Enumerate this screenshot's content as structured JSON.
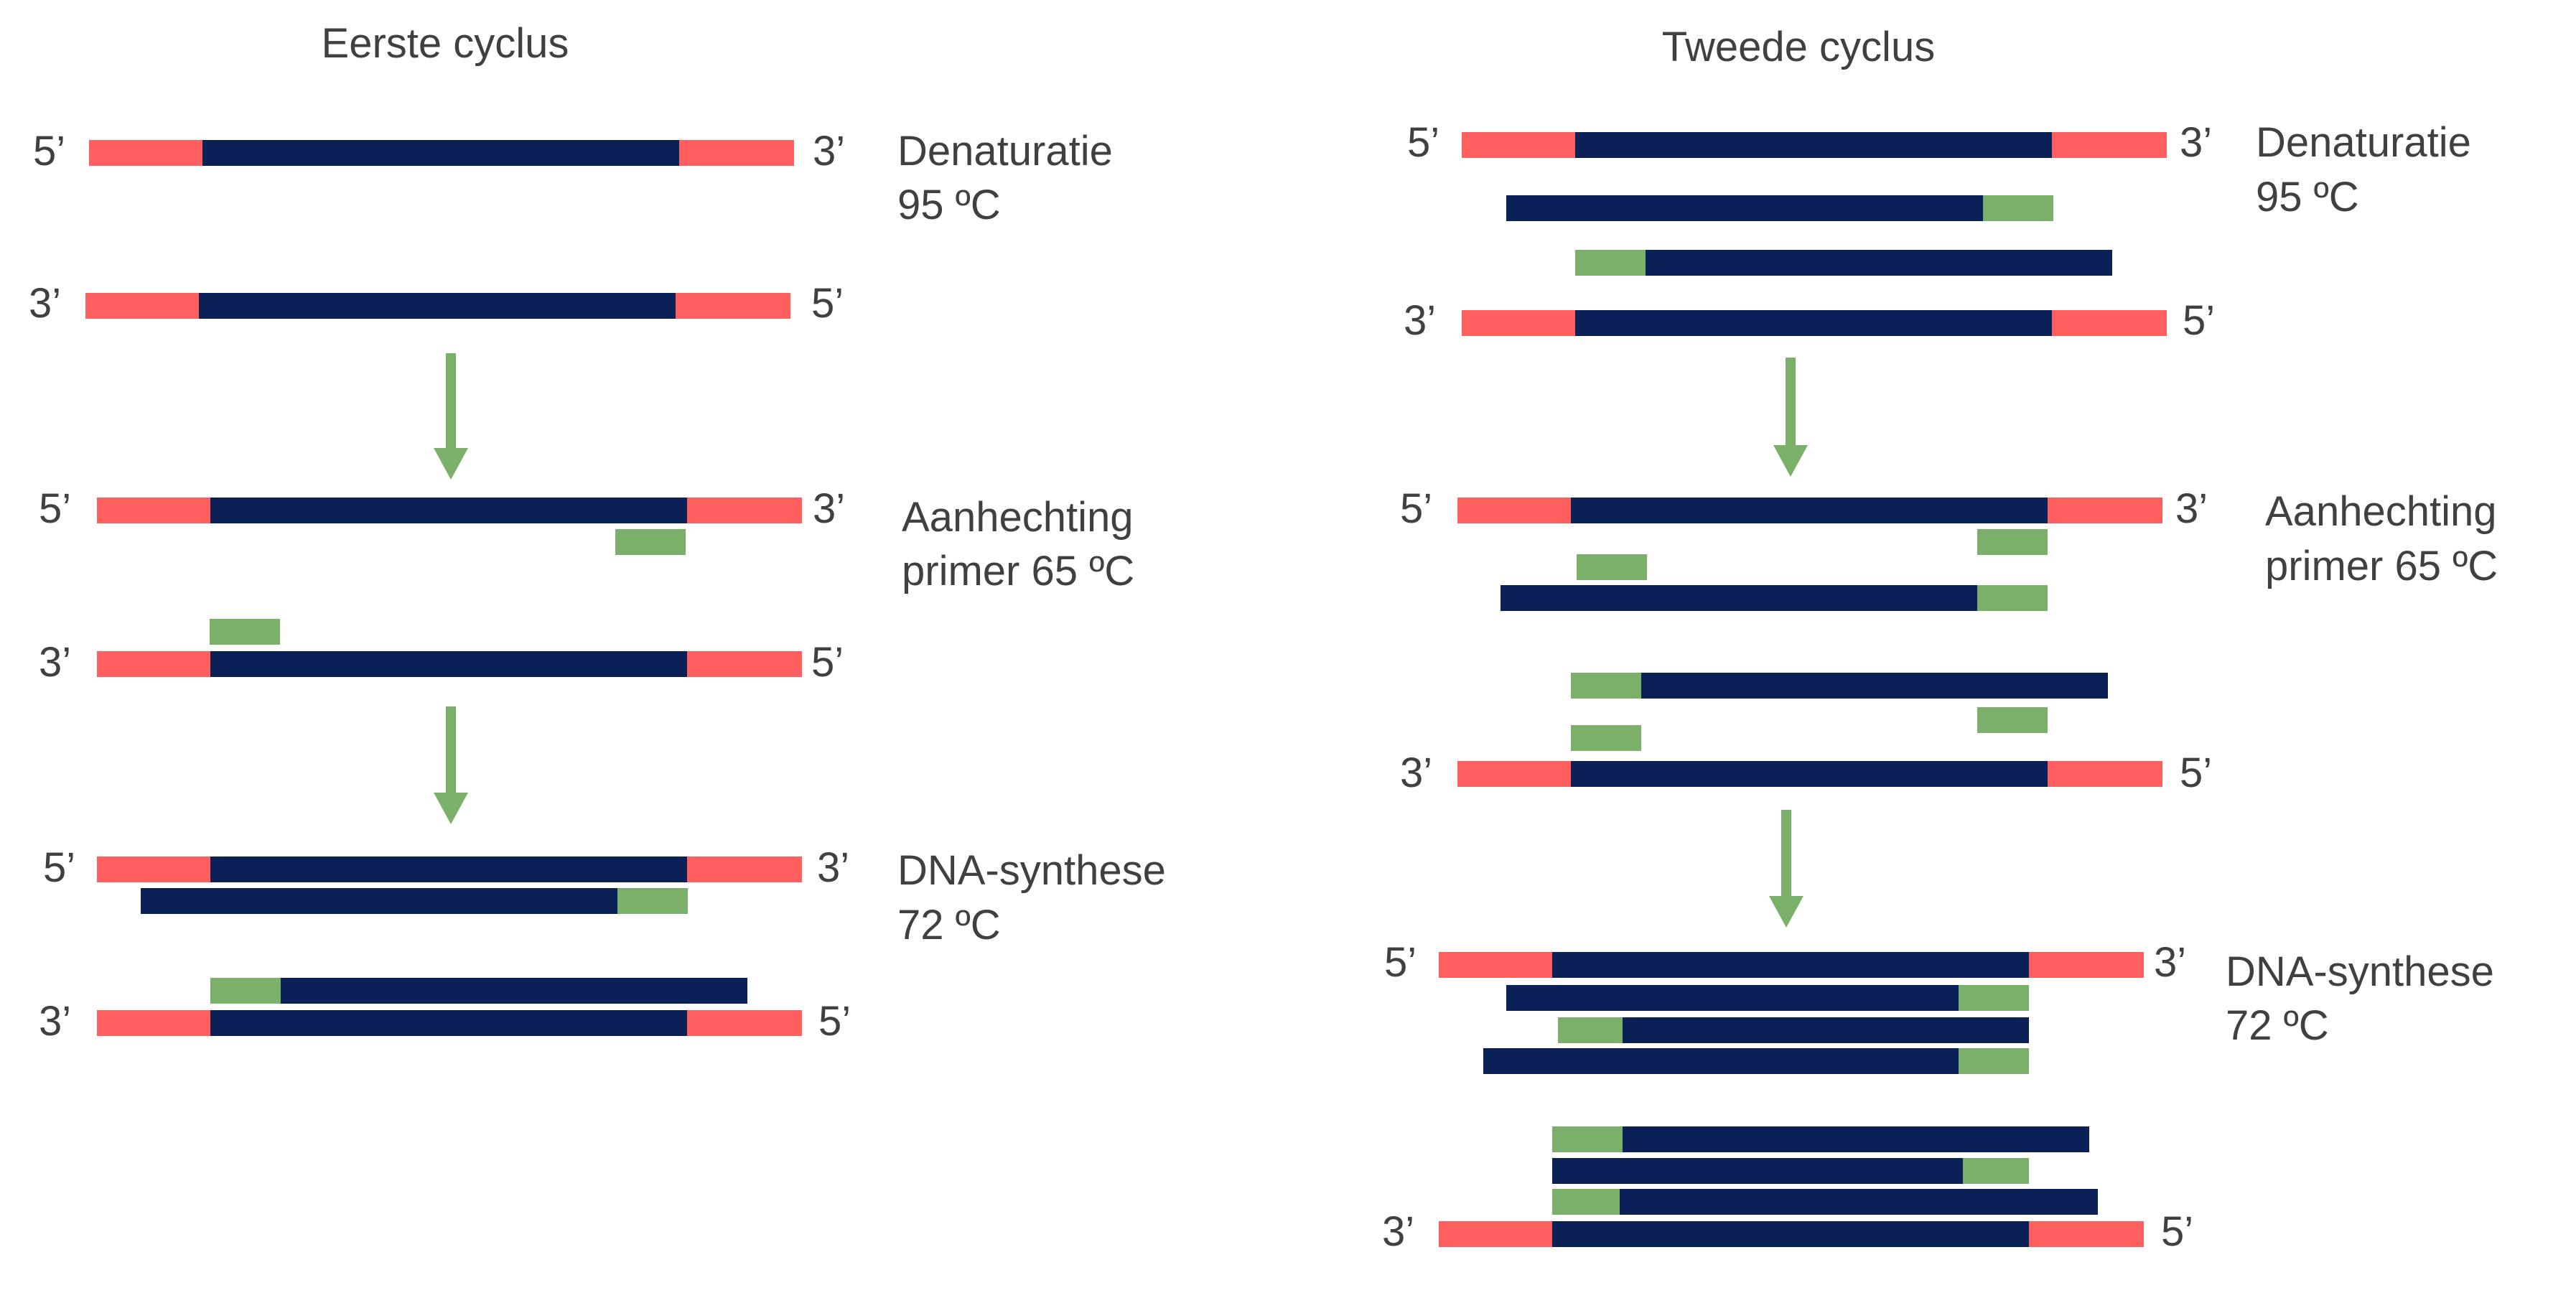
{
  "colors": {
    "flank": "#ff5f5f",
    "template": "#0b2057",
    "primer": "#7ab06a",
    "arrow": "#7ab06a",
    "text": "#404040"
  },
  "ends": {
    "five": "5’",
    "three": "3’"
  },
  "cycles": [
    {
      "title": "Eerste cyclus",
      "steps": [
        {
          "name": "denaturation",
          "line1": "Denaturatie",
          "line2": "95 ºC"
        },
        {
          "name": "annealing",
          "line1": "Aanhechting",
          "line2": "primer 65 ºC"
        },
        {
          "name": "synthesis",
          "line1": "DNA-synthese",
          "line2": "72 ºC"
        }
      ]
    },
    {
      "title": "Tweede cyclus",
      "steps": [
        {
          "name": "denaturation",
          "line1": "Denaturatie",
          "line2": "95 ºC"
        },
        {
          "name": "annealing",
          "line1": "Aanhechting",
          "line2": "primer 65 ºC"
        },
        {
          "name": "synthesis",
          "line1": "DNA-synthese",
          "line2": "72 ºC"
        }
      ]
    }
  ]
}
